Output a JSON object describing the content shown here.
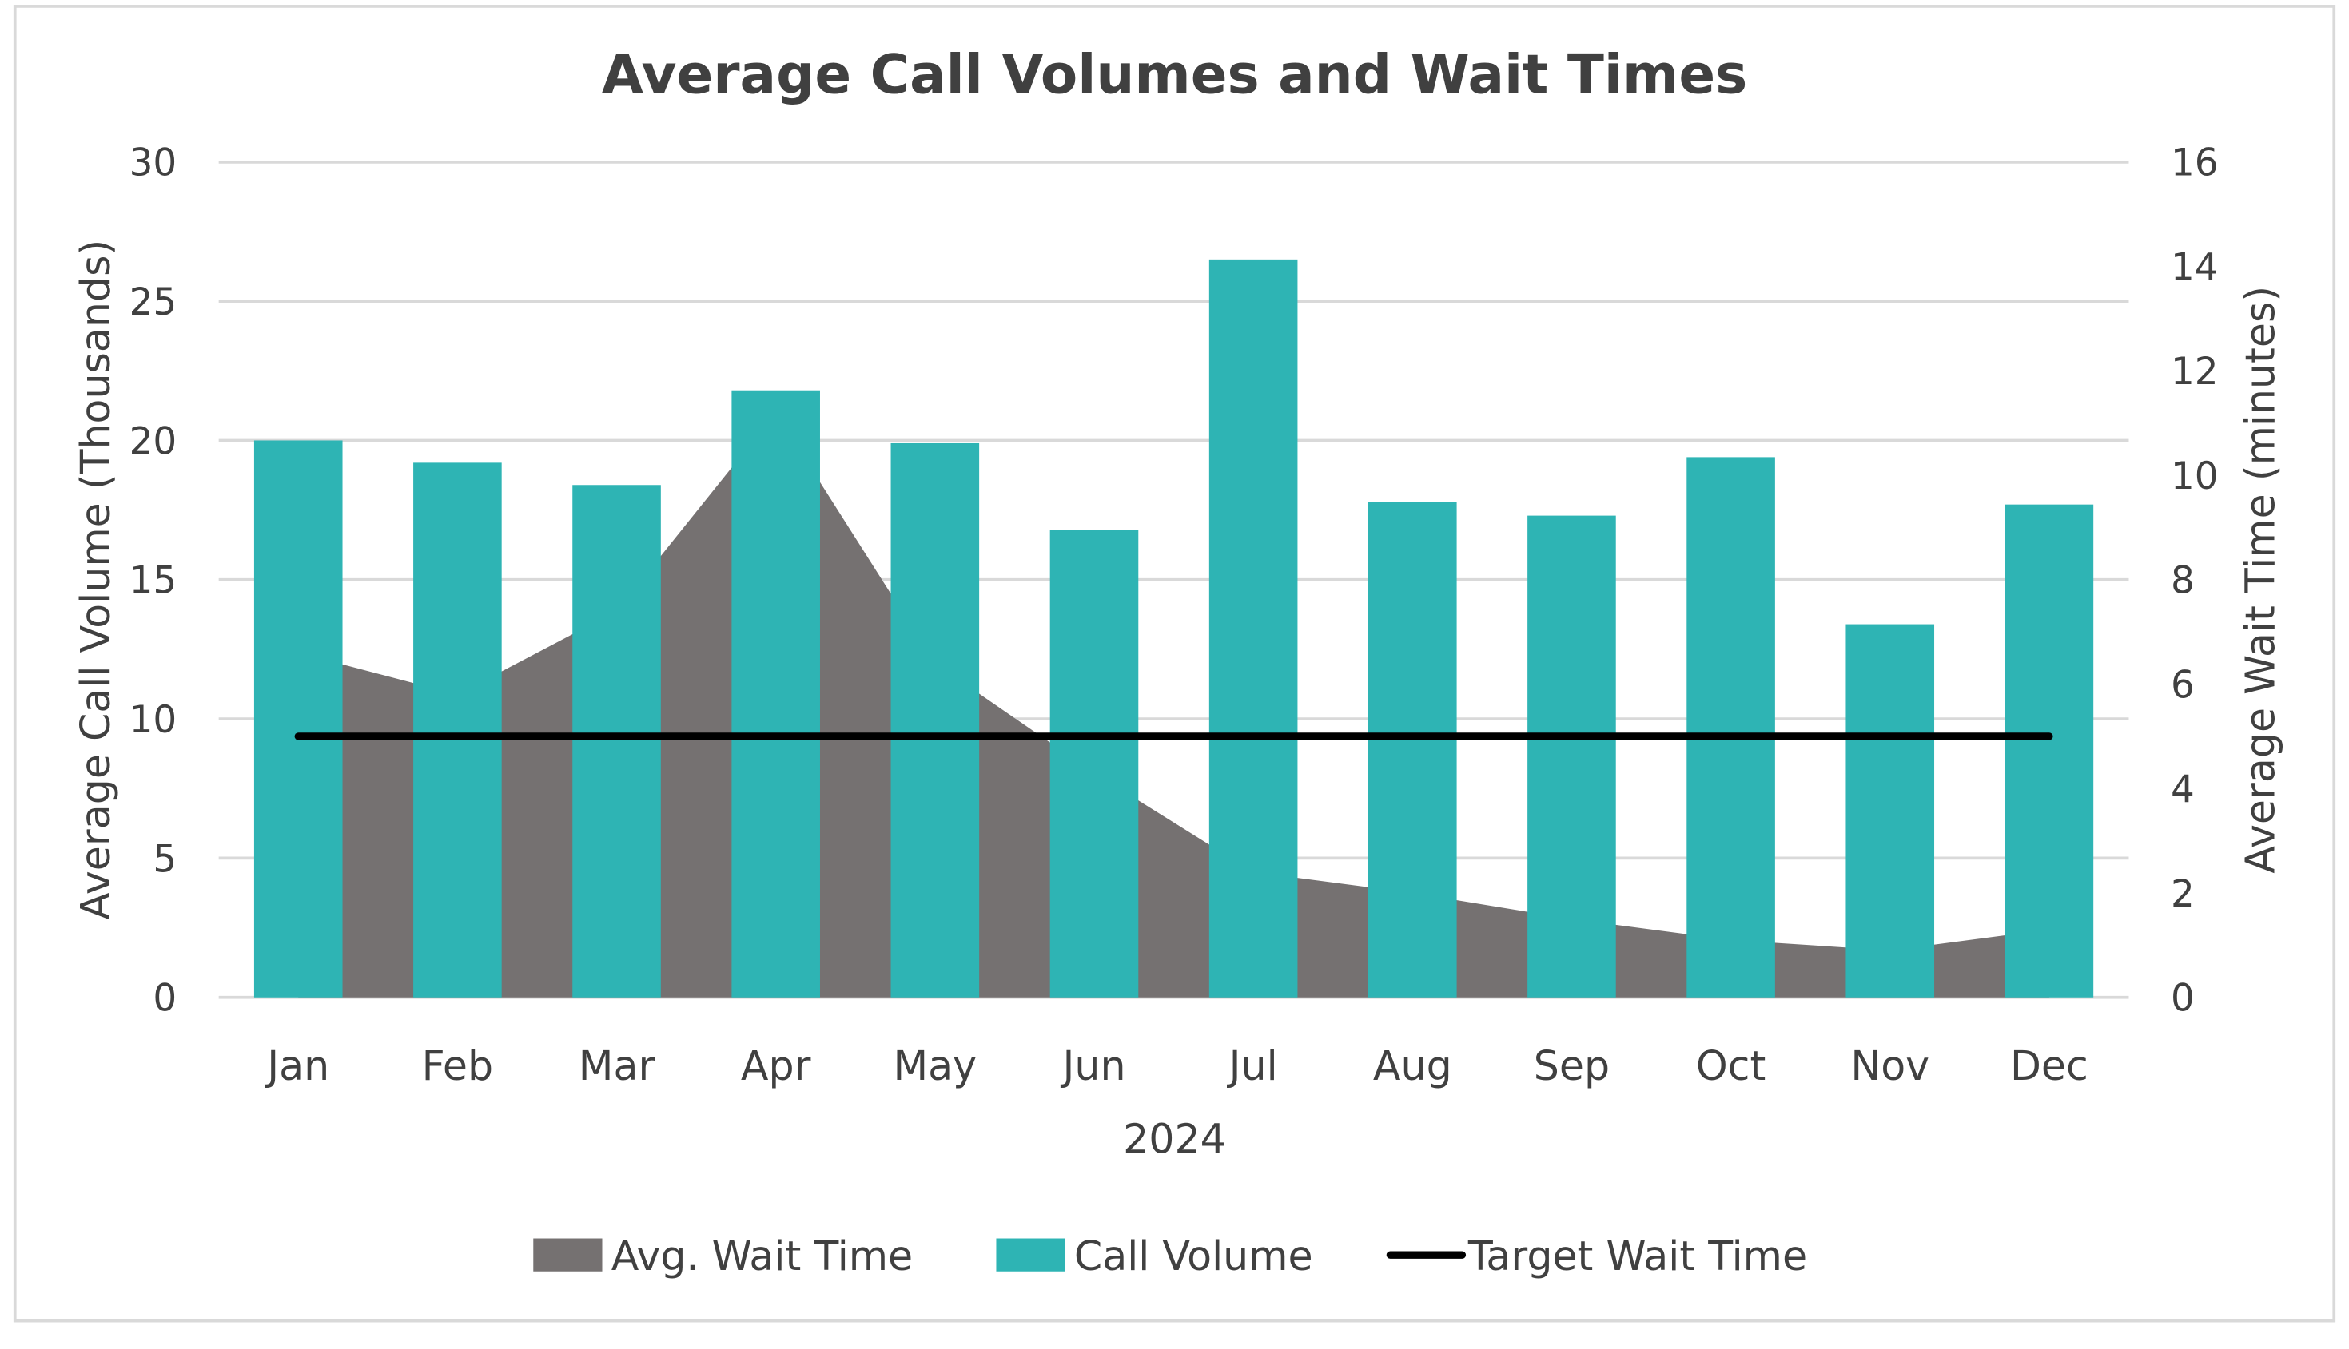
{
  "chart_data": {
    "type": "bar+area+line",
    "title": "Average Call Volumes and Wait Times",
    "xlabel": "2024",
    "ylabel_left": "Average Call Volume (Thousands)",
    "ylabel_right": "Average Wait Time (minutes)",
    "categories": [
      "Jan",
      "Feb",
      "Mar",
      "Apr",
      "May",
      "Jun",
      "Jul",
      "Aug",
      "Sep",
      "Oct",
      "Nov",
      "Dec"
    ],
    "ylim_left": [
      0,
      30
    ],
    "yticks_left": [
      "0",
      "5",
      "10",
      "15",
      "20",
      "25",
      "30"
    ],
    "ylim_right": [
      0,
      16
    ],
    "yticks_right": [
      "0",
      "2",
      "4",
      "6",
      "8",
      "10",
      "12",
      "14",
      "16"
    ],
    "grid": true,
    "legend_position": "bottom",
    "series": [
      {
        "name": "Avg. Wait Time",
        "type": "area",
        "axis": "right",
        "color": "#757171",
        "values": [
          6.6,
          5.8,
          7.4,
          11.2,
          6.4,
          4.3,
          2.4,
          2.0,
          1.5,
          1.1,
          0.9,
          1.3
        ]
      },
      {
        "name": "Call Volume",
        "type": "bar",
        "axis": "left",
        "color": "#2EB4B4",
        "values": [
          20.0,
          19.2,
          18.4,
          21.8,
          19.9,
          16.8,
          26.5,
          17.8,
          17.3,
          19.4,
          13.4,
          17.7
        ]
      },
      {
        "name": "Target Wait Time",
        "type": "line",
        "axis": "right",
        "color": "#000000",
        "values": [
          5,
          5,
          5,
          5,
          5,
          5,
          5,
          5,
          5,
          5,
          5,
          5
        ]
      }
    ]
  }
}
